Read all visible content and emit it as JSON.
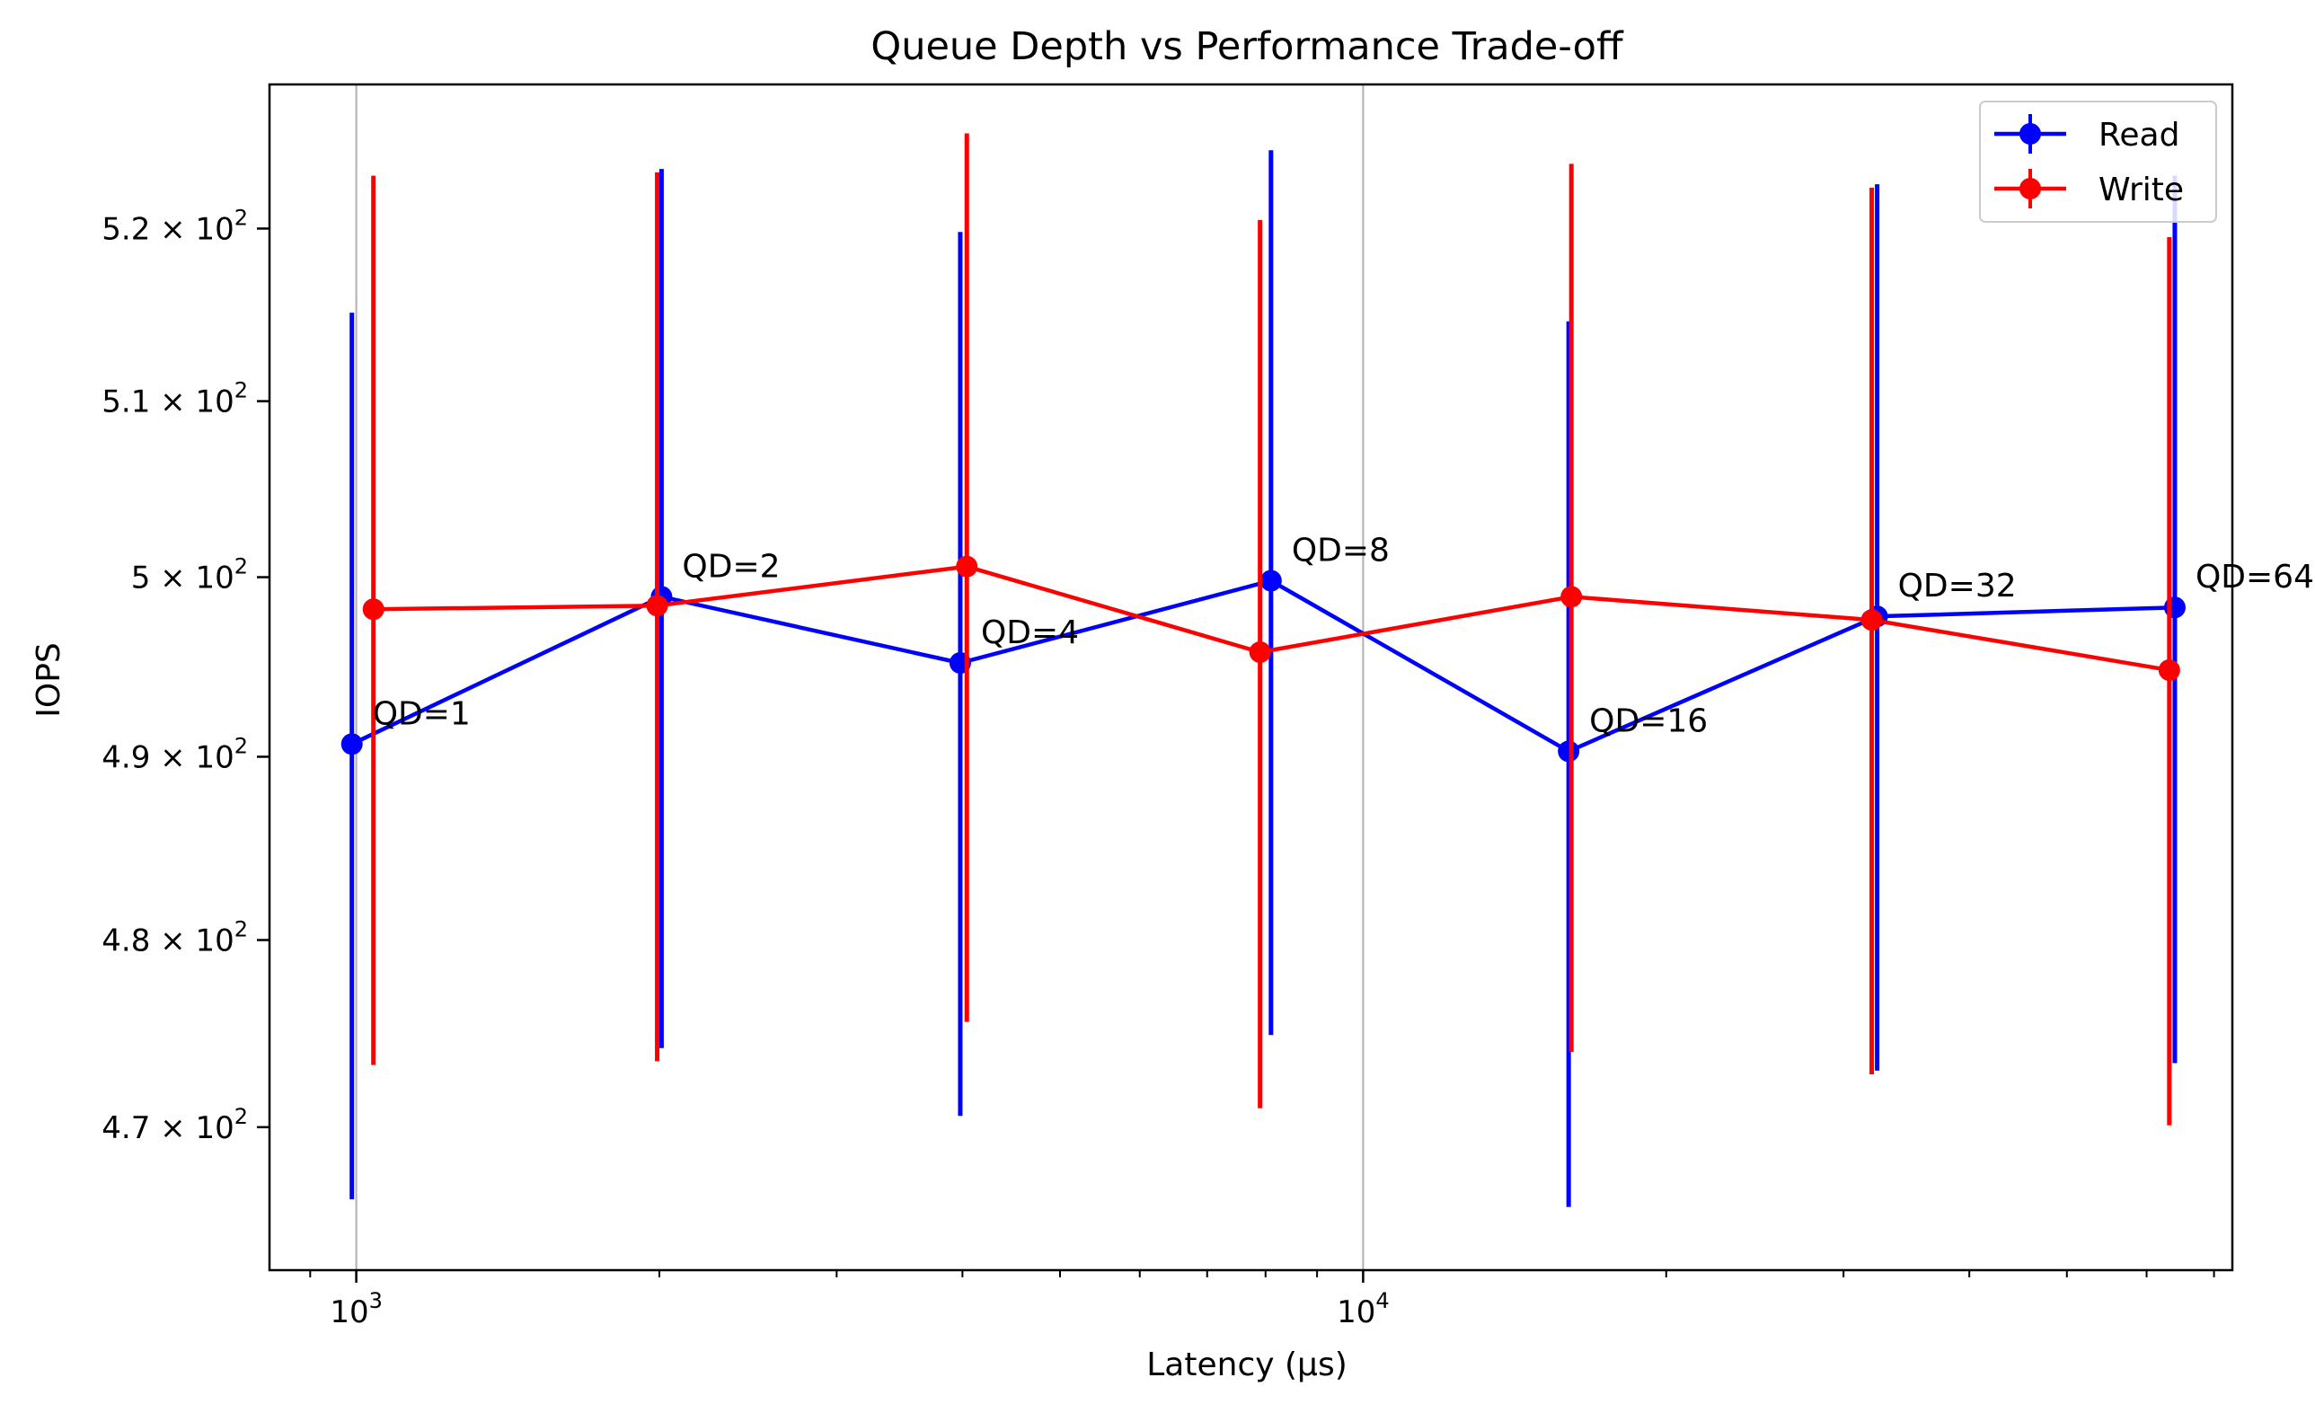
{
  "chart_data": {
    "type": "line",
    "title": "Queue Depth vs Performance Trade-off",
    "xlabel": "Latency (µs)",
    "ylabel": "IOPS",
    "xscale": "log",
    "yscale": "log",
    "xlim": [
      820,
      73000
    ],
    "ylim": [
      462.5,
      528.5
    ],
    "x_major_ticks": [
      1000,
      10000
    ],
    "x_tick_labels": [
      {
        "base": "10",
        "exp": "3"
      },
      {
        "base": "10",
        "exp": "4"
      }
    ],
    "y_ticks": [
      470,
      480,
      490,
      500,
      510,
      520
    ],
    "y_tick_labels": [
      {
        "mant": "4.7",
        "base": "10",
        "exp": "2"
      },
      {
        "mant": "4.8",
        "base": "10",
        "exp": "2"
      },
      {
        "mant": "4.9",
        "base": "10",
        "exp": "2"
      },
      {
        "mant": "5",
        "base": "10",
        "exp": "2"
      },
      {
        "mant": "5.1",
        "base": "10",
        "exp": "2"
      },
      {
        "mant": "5.2",
        "base": "10",
        "exp": "2"
      }
    ],
    "grid": "x major only",
    "legend_position": "upper right",
    "series": [
      {
        "name": "Read",
        "color": "#0000ff",
        "x": [
          990,
          2010,
          3980,
          8100,
          16000,
          32400,
          64000
        ],
        "y": [
          490.7,
          498.9,
          495.2,
          499.8,
          490.3,
          497.8,
          498.3
        ],
        "err_low": [
          466.2,
          474.2,
          470.6,
          474.9,
          465.8,
          473.0,
          473.4
        ],
        "err_high": [
          515.1,
          523.5,
          519.8,
          524.6,
          514.6,
          522.6,
          523.1
        ]
      },
      {
        "name": "Write",
        "color": "#ff0000",
        "x": [
          1040,
          1990,
          4040,
          7900,
          16100,
          32000,
          63200
        ],
        "y": [
          498.2,
          498.4,
          500.6,
          495.8,
          498.9,
          497.6,
          494.8
        ],
        "err_low": [
          473.3,
          473.5,
          475.6,
          471.0,
          474.0,
          472.8,
          470.1
        ],
        "err_high": [
          523.1,
          523.3,
          525.6,
          520.5,
          523.8,
          522.4,
          519.5
        ]
      }
    ],
    "annotations": [
      {
        "text": "QD=1",
        "x": 990,
        "y": 490.7
      },
      {
        "text": "QD=2",
        "x": 2010,
        "y": 498.9
      },
      {
        "text": "QD=4",
        "x": 3980,
        "y": 495.2
      },
      {
        "text": "QD=8",
        "x": 8100,
        "y": 499.8
      },
      {
        "text": "QD=16",
        "x": 16000,
        "y": 490.3
      },
      {
        "text": "QD=32",
        "x": 32400,
        "y": 497.8
      },
      {
        "text": "QD=64",
        "x": 64000,
        "y": 498.3
      }
    ]
  }
}
